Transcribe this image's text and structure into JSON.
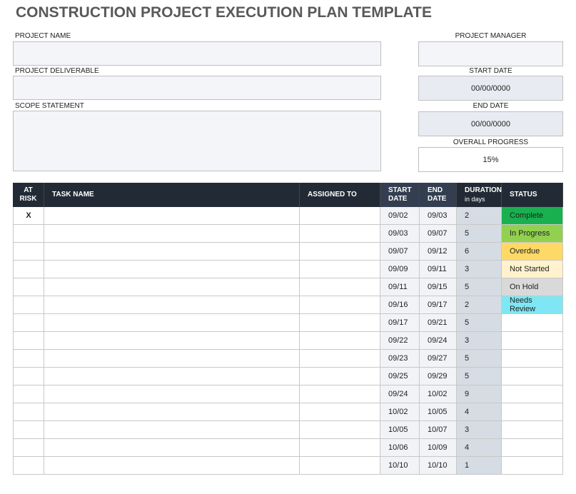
{
  "title": "CONSTRUCTION PROJECT EXECUTION PLAN TEMPLATE",
  "fields": {
    "project_name": {
      "label": "PROJECT NAME"
    },
    "project_deliverable": {
      "label": "PROJECT DELIVERABLE"
    },
    "scope_statement": {
      "label": "SCOPE STATEMENT"
    },
    "project_manager": {
      "label": "PROJECT MANAGER"
    },
    "start_date": {
      "label": "START DATE",
      "value": "00/00/0000"
    },
    "end_date": {
      "label": "END DATE",
      "value": "00/00/0000"
    },
    "overall_progress": {
      "label": "OVERALL PROGRESS",
      "value": "15%"
    }
  },
  "table": {
    "headers": {
      "at_risk": "AT RISK",
      "task_name": "TASK NAME",
      "assigned_to": "ASSIGNED TO",
      "start_date": "START DATE",
      "end_date": "END DATE",
      "duration": "DURATION",
      "duration_unit": "in days",
      "status": "STATUS"
    },
    "status_colors": {
      "Complete": "#19b14f",
      "In Progress": "#92d050",
      "Overdue": "#ffd966",
      "Not Started": "#fff2cc",
      "On Hold": "#d9d9d9",
      "Needs Review": "#7fe7f3"
    },
    "rows": [
      {
        "at_risk": "X",
        "start": "09/02",
        "end": "09/03",
        "duration": 2,
        "status": "Complete"
      },
      {
        "at_risk": null,
        "start": "09/03",
        "end": "09/07",
        "duration": 5,
        "status": "In Progress"
      },
      {
        "at_risk": null,
        "start": "09/07",
        "end": "09/12",
        "duration": 6,
        "status": "Overdue"
      },
      {
        "at_risk": null,
        "start": "09/09",
        "end": "09/11",
        "duration": 3,
        "status": "Not Started"
      },
      {
        "at_risk": null,
        "start": "09/11",
        "end": "09/15",
        "duration": 5,
        "status": "On Hold"
      },
      {
        "at_risk": null,
        "start": "09/16",
        "end": "09/17",
        "duration": 2,
        "status": "Needs Review"
      },
      {
        "at_risk": null,
        "start": "09/17",
        "end": "09/21",
        "duration": 5,
        "status": null
      },
      {
        "at_risk": null,
        "start": "09/22",
        "end": "09/24",
        "duration": 3,
        "status": null
      },
      {
        "at_risk": null,
        "start": "09/23",
        "end": "09/27",
        "duration": 5,
        "status": null
      },
      {
        "at_risk": null,
        "start": "09/25",
        "end": "09/29",
        "duration": 5,
        "status": null
      },
      {
        "at_risk": null,
        "start": "09/24",
        "end": "10/02",
        "duration": 9,
        "status": null
      },
      {
        "at_risk": null,
        "start": "10/02",
        "end": "10/05",
        "duration": 4,
        "status": null
      },
      {
        "at_risk": null,
        "start": "10/05",
        "end": "10/07",
        "duration": 3,
        "status": null
      },
      {
        "at_risk": null,
        "start": "10/06",
        "end": "10/09",
        "duration": 4,
        "status": null
      },
      {
        "at_risk": null,
        "start": "10/10",
        "end": "10/10",
        "duration": 1,
        "status": null
      }
    ]
  }
}
